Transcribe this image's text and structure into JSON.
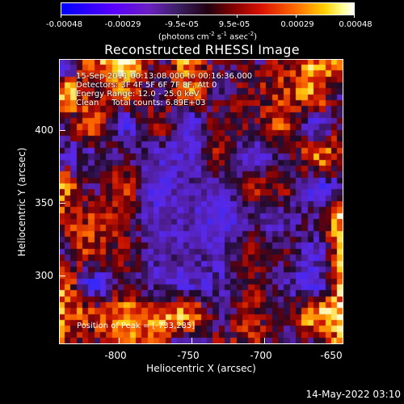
{
  "colorbar": {
    "ticks": [
      "-0.00048",
      "-0.00029",
      "-9.5e-05",
      "9.5e-05",
      "0.00029",
      "0.00048"
    ],
    "units_prefix": "(photons cm",
    "units_sup1": "-2",
    "units_mid1": " s",
    "units_sup2": "-1",
    "units_mid2": " asec",
    "units_sup3": "-2",
    "units_suffix": ")"
  },
  "title": "Reconstructed RHESSI Image",
  "info": {
    "time": "15-Sep-2011 00:13:08.000 to 00:16:36.000",
    "detectors": "Detectors: 3F 4F 5F 6F 7F 8F, Att 0",
    "energy": "Energy Range: 12.0 - 25.0 keV",
    "clean": "Clean     Total counts: 6.89E+03"
  },
  "peak": "Position of Peak = [-733,285]",
  "axes": {
    "xlabel": "Heliocentric X (arcsec)",
    "ylabel": "Heliocentric Y (arcsec)",
    "xticks": [
      "-800",
      "-750",
      "-700",
      "-650"
    ],
    "yticks": [
      "400",
      "350",
      "300"
    ]
  },
  "timestamp": "14-May-2022 03:10",
  "colors": {
    "background": "#000000",
    "text": "#ffffff"
  }
}
